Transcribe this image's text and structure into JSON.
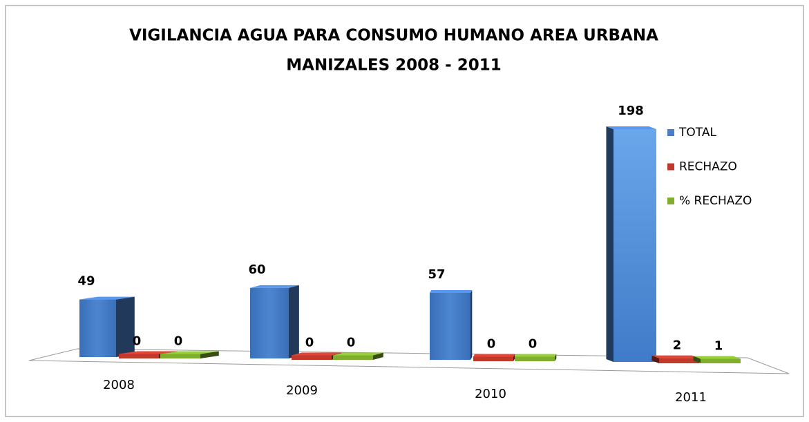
{
  "chart_data": {
    "type": "bar3d",
    "title": [
      "VIGILANCIA AGUA PARA CONSUMO HUMANO AREA URBANA",
      "MANIZALES 2008 - 2011"
    ],
    "categories": [
      "2008",
      "2009",
      "2010",
      "2011"
    ],
    "series": [
      {
        "name": "TOTAL",
        "color": "#4a7fc8",
        "values": [
          49,
          60,
          57,
          198
        ]
      },
      {
        "name": "RECHAZO",
        "color": "#c0392b",
        "values": [
          0,
          0,
          0,
          2
        ]
      },
      {
        "name": "% RECHAZO",
        "color": "#7fae2e",
        "values": [
          0,
          0,
          0,
          1
        ]
      }
    ],
    "legend": "right"
  }
}
